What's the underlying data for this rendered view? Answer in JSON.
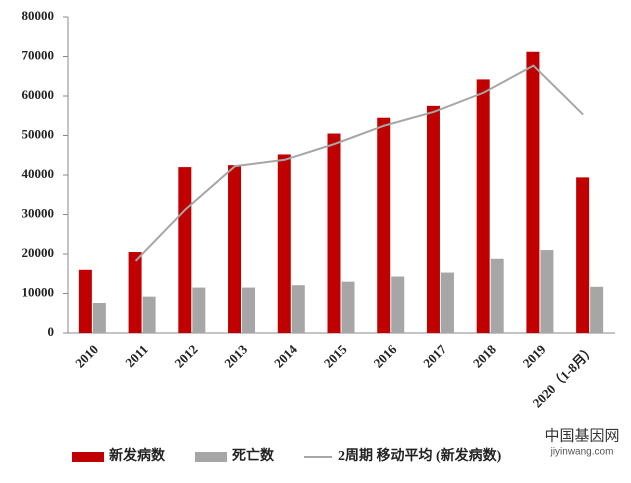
{
  "chart_data": {
    "type": "bar",
    "categories": [
      "2010",
      "2011",
      "2012",
      "2013",
      "2014",
      "2015",
      "2016",
      "2017",
      "2018",
      "2019",
      "2020（1-8月）"
    ],
    "series": [
      {
        "name": "新发病数",
        "color": "#c00000",
        "type": "bar",
        "values": [
          16000,
          20500,
          42000,
          42500,
          45200,
          50500,
          54500,
          57500,
          64200,
          71200,
          39400
        ]
      },
      {
        "name": "死亡数",
        "color": "#a6a6a6",
        "type": "bar",
        "values": [
          7600,
          9200,
          11500,
          11500,
          12100,
          13000,
          14300,
          15300,
          18800,
          21000,
          11700
        ]
      },
      {
        "name": "2周期 移动平均 (新发病数)",
        "color": "#a6a6a6",
        "type": "line",
        "values": [
          null,
          18250,
          31250,
          42250,
          43850,
          47850,
          52500,
          56000,
          60850,
          67700,
          55300
        ]
      }
    ],
    "ylim": [
      0,
      80000
    ],
    "yticks": [
      0,
      10000,
      20000,
      30000,
      40000,
      50000,
      60000,
      70000,
      80000
    ],
    "legend": "bottom",
    "watermark": [
      "中国基因网",
      "jiyinwang.com"
    ]
  }
}
